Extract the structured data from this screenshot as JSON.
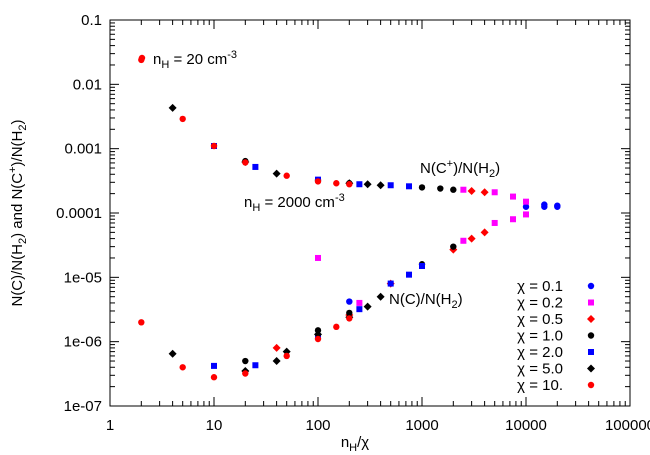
{
  "chart_data": {
    "type": "scatter",
    "xlog": true,
    "ylog": true,
    "xlim": [
      1,
      100000
    ],
    "ylim": [
      1e-07,
      0.1
    ],
    "x_ticks": [
      1,
      10,
      100,
      1000,
      10000,
      100000
    ],
    "x_tick_labels": [
      "1",
      "10",
      "100",
      "1000",
      "10000",
      "100000"
    ],
    "y_ticks": [
      1e-07,
      1e-06,
      1e-05,
      0.0001,
      0.001,
      0.01,
      0.1
    ],
    "y_tick_labels": [
      "1e-07",
      "1e-06",
      "1e-05",
      "0.0001",
      "0.001",
      "0.01",
      "0.1"
    ],
    "xlabel": {
      "main": "n",
      "sub": "H",
      "rest": "/χ"
    },
    "ylabel": {
      "p1": "N(C)/N(H",
      "s1": "2",
      "p2": ") and N(C",
      "s2": "+",
      "p3": ")/N(H",
      "s3": "2",
      "p4": ")"
    },
    "annotations": {
      "n20": {
        "pre": "n",
        "sub": "H",
        "mid": " = 20 cm",
        "sup": "-3"
      },
      "n2000": {
        "pre": "n",
        "sub": "H",
        "mid": " = 2000 cm",
        "sup": "-3"
      },
      "cplus": {
        "pre": "N(C",
        "sup": "+",
        "mid": ")/N(H",
        "sub": "2",
        "post": ")"
      },
      "catom": {
        "pre": "N(C)/N(H",
        "sub": "2",
        "post": ")"
      }
    },
    "legend_placement": "bottom-right",
    "grid": false,
    "series": [
      {
        "name": "χ = 0.1",
        "color": "#0000ff",
        "marker": "circle",
        "points": [
          [
            200,
            4.2e-06
          ],
          [
            10000,
            0.000125
          ],
          [
            15000,
            0.000125
          ],
          [
            20000,
            0.000125
          ],
          [
            15000,
            0.000135
          ],
          [
            20000,
            0.00013
          ]
        ]
      },
      {
        "name": "χ = 0.2",
        "color": "#ff00ff",
        "marker": "square",
        "points": [
          [
            100,
            2e-05
          ],
          [
            250,
            4e-06
          ],
          [
            2500,
            3.7e-05
          ],
          [
            5000,
            7e-05
          ],
          [
            7500,
            8e-05
          ],
          [
            10000,
            9.5e-05
          ],
          [
            2500,
            0.00023
          ],
          [
            5000,
            0.00021
          ],
          [
            7500,
            0.00018
          ],
          [
            10000,
            0.00015
          ]
        ]
      },
      {
        "name": "χ = 0.5",
        "color": "#ff0000",
        "marker": "diamond",
        "points": [
          [
            40,
            8e-07
          ],
          [
            200,
            2.6e-06
          ],
          [
            500,
            8e-06
          ],
          [
            2000,
            2.7e-05
          ],
          [
            3000,
            4e-05
          ],
          [
            4000,
            5e-05
          ],
          [
            3000,
            0.00022
          ],
          [
            4000,
            0.00021
          ]
        ]
      },
      {
        "name": "χ = 1.0",
        "color": "#000000",
        "marker": "circle",
        "points": [
          [
            20,
            5e-07
          ],
          [
            100,
            1.5e-06
          ],
          [
            200,
            2.8e-06
          ],
          [
            1000,
            1.6e-05
          ],
          [
            2000,
            3e-05
          ],
          [
            20,
            0.00064
          ],
          [
            100,
            0.00032
          ],
          [
            200,
            0.00029
          ],
          [
            1000,
            0.00025
          ],
          [
            1500,
            0.00024
          ],
          [
            2000,
            0.00023
          ]
        ]
      },
      {
        "name": "χ = 2.0",
        "color": "#0000ff",
        "marker": "square",
        "points": [
          [
            10,
            4.2e-07
          ],
          [
            25,
            4.3e-07
          ],
          [
            100,
            1.2e-06
          ],
          [
            250,
            3.2e-06
          ],
          [
            500,
            8e-06
          ],
          [
            750,
            1.1e-05
          ],
          [
            1000,
            1.5e-05
          ],
          [
            10,
            0.0011
          ],
          [
            25,
            0.00052
          ],
          [
            100,
            0.00033
          ],
          [
            250,
            0.00028
          ],
          [
            500,
            0.00027
          ],
          [
            750,
            0.00026
          ]
        ]
      },
      {
        "name": "χ = 5.0",
        "color": "#000000",
        "marker": "diamond",
        "points": [
          [
            4,
            6.5e-07
          ],
          [
            20,
            3.5e-07
          ],
          [
            40,
            5e-07
          ],
          [
            50,
            7e-07
          ],
          [
            100,
            1.3e-06
          ],
          [
            200,
            2.4e-06
          ],
          [
            300,
            3.5e-06
          ],
          [
            400,
            5e-06
          ],
          [
            4,
            0.0043
          ],
          [
            20,
            0.00062
          ],
          [
            40,
            0.00041
          ],
          [
            200,
            0.00029
          ],
          [
            300,
            0.00028
          ],
          [
            400,
            0.00027
          ]
        ]
      },
      {
        "name": "χ = 10.",
        "color": "#ff0000",
        "marker": "circle",
        "points": [
          [
            2,
            2e-06
          ],
          [
            5,
            4e-07
          ],
          [
            10,
            2.8e-07
          ],
          [
            20,
            3.2e-07
          ],
          [
            50,
            6e-07
          ],
          [
            100,
            1.1e-06
          ],
          [
            150,
            1.7e-06
          ],
          [
            200,
            2.3e-06
          ],
          [
            2,
            0.024
          ],
          [
            5,
            0.0029
          ],
          [
            10,
            0.0011
          ],
          [
            20,
            0.00061
          ],
          [
            50,
            0.00038
          ],
          [
            100,
            0.00031
          ],
          [
            150,
            0.00029
          ],
          [
            200,
            0.00028
          ]
        ]
      }
    ]
  }
}
